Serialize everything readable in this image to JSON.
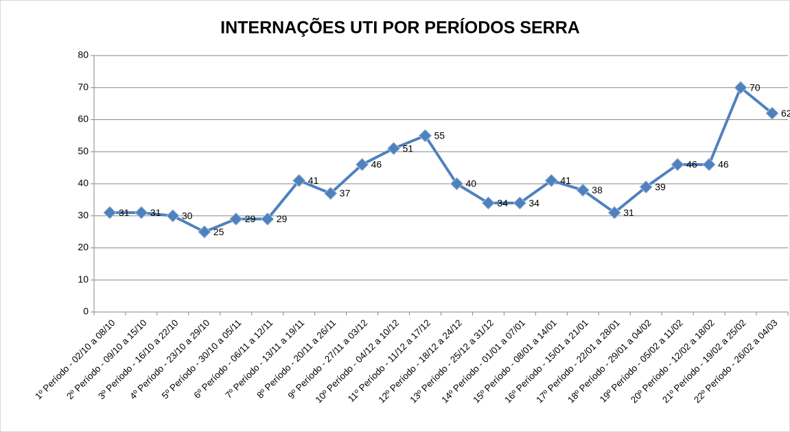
{
  "chart_data": {
    "type": "line",
    "title": "INTERNAÇÕES UTI POR PERÍODOS SERRA",
    "categories": [
      "1º Período - 02/10 a 08/10",
      "2º Período - 09/10 a 15/10",
      "3º Período - 16/10 a 22/10",
      "4º Período - 23/10 a 29/10",
      "5º Período - 30/10 a 05/11",
      "6º Período - 06/11 a 12/11",
      "7º Período - 13/11 a 19/11",
      "8º Período - 20/11 a 26/11",
      "9º Período - 27/11 a 03/12",
      "10º Período - 04/12 a 10/12",
      "11º Período - 11/12 a 17/12",
      "12º Período - 18/12 a 24/12",
      "13º Período - 25/12 a 31/12",
      "14º Período - 01/01 a 07/01",
      "15º Período - 08/01 a 14/01",
      "16º Período - 15/01 a 21/01",
      "17º Período - 22/01 a 28/01",
      "18º Período - 29/01 a 04/02",
      "19º Período - 05/02 a 11/02",
      "20º Período - 12/02 a 18/02",
      "21º Período - 19/02 a 25/02",
      "22º Período - 26/02 a 04/03"
    ],
    "values": [
      31,
      31,
      30,
      25,
      29,
      29,
      41,
      37,
      46,
      51,
      55,
      40,
      34,
      34,
      41,
      38,
      31,
      39,
      46,
      46,
      70,
      62
    ],
    "color": "#4f81bd",
    "ylim": [
      0,
      80
    ],
    "yticks": [
      0,
      10,
      20,
      30,
      40,
      50,
      60,
      70,
      80
    ],
    "grid": true
  }
}
